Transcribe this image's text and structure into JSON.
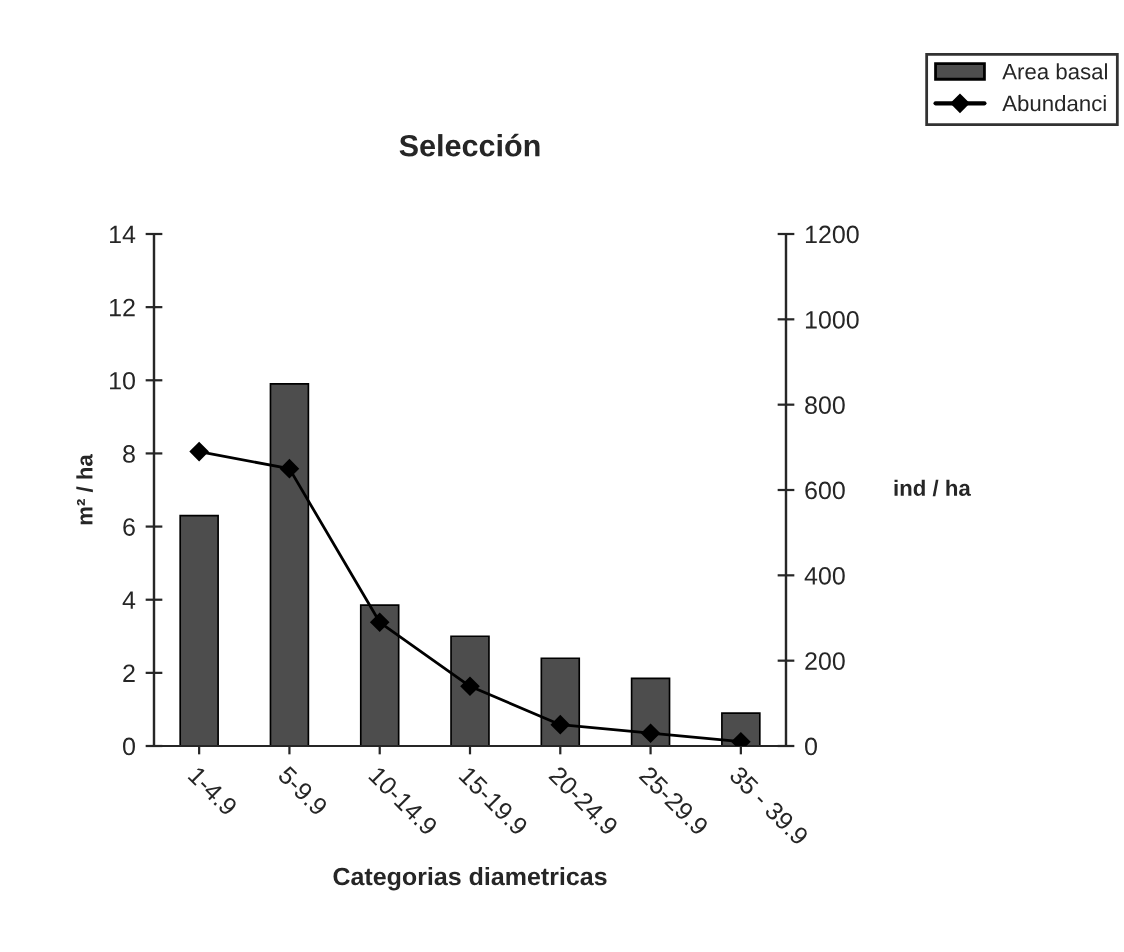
{
  "chart_data": {
    "type": "bar",
    "title": "Selección",
    "xlabel": "Categorias diametricas",
    "ylabel": "m² / ha",
    "y2label": "ind / ha",
    "categories": [
      "1-4.9",
      "5-9.9",
      "10-14.9",
      "15-19.9",
      "20-24.9",
      "25-29.9",
      "35 - 39.9"
    ],
    "series": [
      {
        "name": "Area basal",
        "color": "#4d4d4d",
        "values": [
          6.3,
          9.9,
          3.85,
          3.0,
          2.4,
          1.85,
          0.9
        ]
      },
      {
        "name": "Abundanci",
        "type": "line",
        "axis": "y2",
        "color": "#000000",
        "values": [
          690,
          650,
          290,
          140,
          50,
          30,
          10
        ]
      }
    ],
    "ylim": [
      0,
      14
    ],
    "yticks": [
      0,
      2,
      4,
      6,
      8,
      10,
      12,
      14
    ],
    "y2lim": [
      0,
      1200
    ],
    "y2ticks": [
      0,
      200,
      400,
      600,
      800,
      1000,
      1200
    ],
    "marker": "diamond",
    "line_style": "solid",
    "legend": "top right",
    "grid": false
  }
}
